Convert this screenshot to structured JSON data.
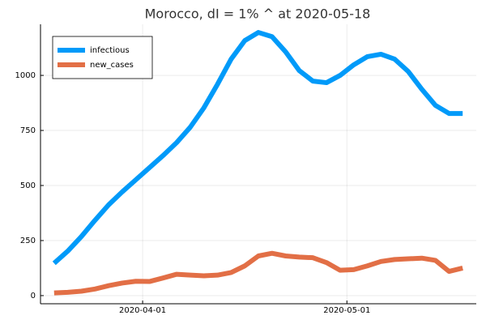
{
  "chart_data": {
    "type": "line",
    "title": "Morocco,  dI = 1% ^ at 2020-05-18",
    "x": [
      "2020-03-19",
      "2020-03-21",
      "2020-03-23",
      "2020-03-25",
      "2020-03-27",
      "2020-03-29",
      "2020-03-31",
      "2020-04-02",
      "2020-04-04",
      "2020-04-06",
      "2020-04-08",
      "2020-04-10",
      "2020-04-12",
      "2020-04-14",
      "2020-04-16",
      "2020-04-18",
      "2020-04-20",
      "2020-04-22",
      "2020-04-24",
      "2020-04-26",
      "2020-04-28",
      "2020-04-30",
      "2020-05-02",
      "2020-05-04",
      "2020-05-06",
      "2020-05-08",
      "2020-05-10",
      "2020-05-12",
      "2020-05-14",
      "2020-05-16",
      "2020-05-18"
    ],
    "series": [
      {
        "name": "infectious",
        "color": "#009af9",
        "values": [
          147,
          202,
          268,
          342,
          412,
          471,
          526,
          581,
          636,
          695,
          765,
          853,
          960,
          1074,
          1158,
          1195,
          1176,
          1107,
          1022,
          974,
          967,
          1000,
          1048,
          1085,
          1096,
          1074,
          1018,
          937,
          864,
          827,
          827
        ]
      },
      {
        "name": "new_cases",
        "color": "#e26f46",
        "values": [
          12,
          15,
          20,
          30,
          45,
          57,
          65,
          64,
          80,
          97,
          93,
          90,
          93,
          105,
          135,
          180,
          192,
          180,
          175,
          172,
          150,
          115,
          118,
          135,
          155,
          164,
          167,
          170,
          160,
          110,
          125
        ]
      }
    ],
    "xlim": [
      "2020-03-17",
      "2020-05-20"
    ],
    "xticks": [
      "2020-04-01",
      "2020-05-01"
    ],
    "ylim": [
      -37,
      1232
    ],
    "yticks": [
      0,
      250,
      500,
      750,
      1000
    ],
    "grid": true,
    "legend": "top-left"
  }
}
